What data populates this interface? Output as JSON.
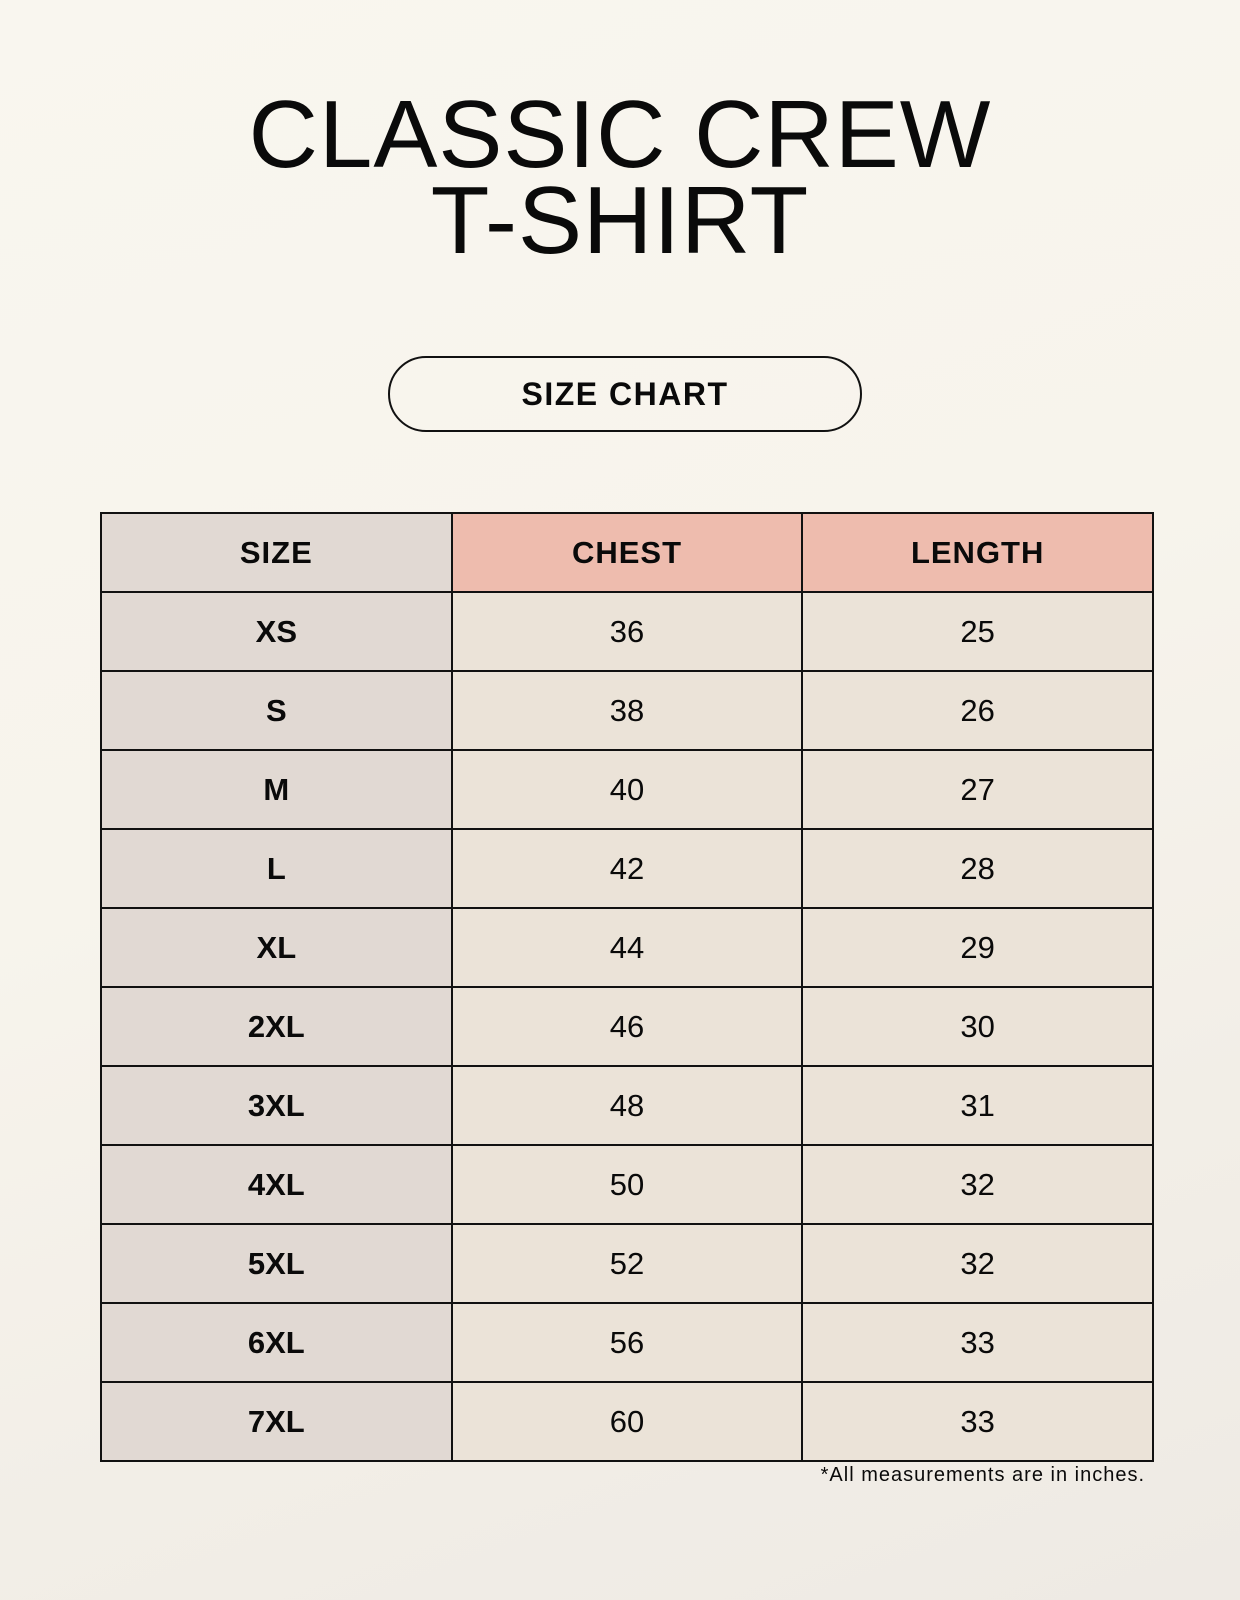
{
  "title_lines": [
    "CLASSIC CREW",
    "T-SHIRT"
  ],
  "badge": "SIZE CHART",
  "table": {
    "headers": [
      "SIZE",
      "CHEST",
      "LENGTH"
    ],
    "rows": [
      [
        "XS",
        "36",
        "25"
      ],
      [
        "S",
        "38",
        "26"
      ],
      [
        "M",
        "40",
        "27"
      ],
      [
        "L",
        "42",
        "28"
      ],
      [
        "XL",
        "44",
        "29"
      ],
      [
        "2XL",
        "46",
        "30"
      ],
      [
        "3XL",
        "48",
        "31"
      ],
      [
        "4XL",
        "50",
        "32"
      ],
      [
        "5XL",
        "52",
        "32"
      ],
      [
        "6XL",
        "56",
        "33"
      ],
      [
        "7XL",
        "60",
        "33"
      ]
    ]
  },
  "footnote": "*All measurements are in inches.",
  "colors": {
    "background": "#f8f5ee",
    "size_column": "#e1d9d3",
    "header_accent": "#eebcae",
    "cell": "#ebe3d8"
  }
}
